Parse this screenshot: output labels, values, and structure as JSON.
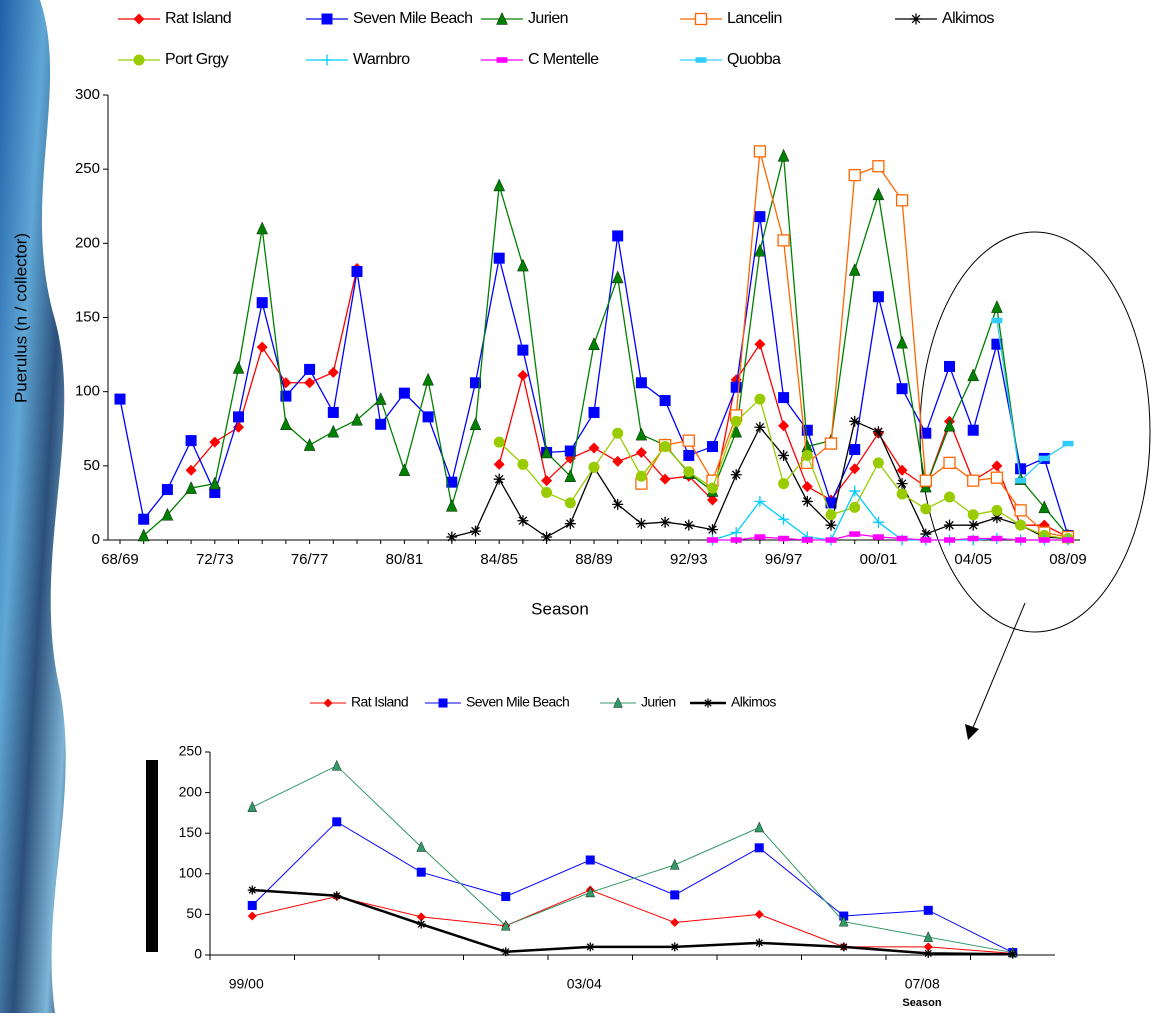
{
  "chart_data": [
    {
      "type": "line",
      "xlabel": "Season",
      "ylabel": "Puerulus (n / collector)",
      "categories": [
        "68/69",
        null,
        null,
        null,
        "72/73",
        null,
        null,
        null,
        "76/77",
        null,
        null,
        null,
        "80/81",
        null,
        null,
        null,
        "84/85",
        null,
        null,
        null,
        "88/89",
        null,
        null,
        null,
        "92/93",
        null,
        null,
        null,
        "96/97",
        null,
        null,
        null,
        "00/01",
        null,
        null,
        null,
        "04/05",
        null,
        null,
        null,
        "08/09"
      ],
      "ylim": [
        0,
        300
      ],
      "yticks": [
        0,
        50,
        100,
        150,
        200,
        250,
        300
      ],
      "series": [
        {
          "name": "Rat Island",
          "color": "#ff0000",
          "marker": "diamond",
          "values": [
            null,
            null,
            null,
            47,
            66,
            76,
            130,
            106,
            106,
            113,
            183,
            null,
            null,
            null,
            null,
            null,
            51,
            111,
            40,
            55,
            62,
            53,
            59,
            41,
            43,
            27,
            108,
            132,
            77,
            36,
            27,
            48,
            72,
            47,
            36,
            80,
            40,
            50,
            10,
            10,
            2
          ]
        },
        {
          "name": "Seven Mile Beach",
          "color": "#0000ff",
          "marker": "square",
          "values": [
            95,
            14,
            34,
            67,
            32,
            83,
            160,
            97,
            115,
            86,
            181,
            78,
            99,
            83,
            39,
            106,
            190,
            128,
            59,
            60,
            86,
            205,
            106,
            94,
            57,
            63,
            103,
            218,
            96,
            74,
            25,
            61,
            164,
            102,
            72,
            117,
            74,
            132,
            48,
            55,
            3
          ]
        },
        {
          "name": "Jurien",
          "color": "#008000",
          "marker": "triangle",
          "values": [
            null,
            3,
            17,
            35,
            38,
            116,
            210,
            78,
            64,
            73,
            81,
            95,
            47,
            108,
            23,
            78,
            239,
            185,
            59,
            43,
            132,
            177,
            71,
            64,
            45,
            33,
            73,
            195,
            259,
            63,
            67,
            182,
            233,
            133,
            36,
            77,
            111,
            157,
            41,
            22,
            3
          ]
        },
        {
          "name": "Lancelin",
          "color": "#ff6600",
          "marker": "open-square",
          "values": [
            null,
            null,
            null,
            null,
            null,
            null,
            null,
            null,
            null,
            null,
            null,
            null,
            null,
            null,
            null,
            null,
            null,
            null,
            null,
            null,
            null,
            null,
            38,
            64,
            67,
            40,
            84,
            262,
            202,
            52,
            65,
            246,
            252,
            229,
            40,
            52,
            40,
            42,
            20,
            5,
            2
          ]
        },
        {
          "name": "Alkimos",
          "color": "#000000",
          "marker": "star",
          "values": [
            null,
            null,
            null,
            null,
            null,
            null,
            null,
            null,
            null,
            null,
            null,
            null,
            null,
            null,
            2,
            6,
            41,
            13,
            2,
            11,
            49,
            24,
            11,
            12,
            10,
            7,
            44,
            76,
            57,
            26,
            10,
            80,
            73,
            38,
            4,
            10,
            10,
            15,
            10,
            2,
            1
          ]
        },
        {
          "name": "Port Grgy",
          "color": "#99cc00",
          "marker": "circle",
          "values": [
            null,
            null,
            null,
            null,
            null,
            null,
            null,
            null,
            null,
            null,
            null,
            null,
            null,
            null,
            null,
            null,
            66,
            51,
            32,
            25,
            49,
            72,
            43,
            63,
            46,
            35,
            80,
            95,
            38,
            57,
            17,
            22,
            52,
            31,
            21,
            29,
            17,
            20,
            10,
            3,
            1
          ]
        },
        {
          "name": "Warnbro",
          "color": "#00ccff",
          "marker": "plus",
          "values": [
            null,
            null,
            null,
            null,
            null,
            null,
            null,
            null,
            null,
            null,
            null,
            null,
            null,
            null,
            null,
            null,
            null,
            null,
            null,
            null,
            null,
            null,
            null,
            null,
            null,
            0,
            5,
            26,
            14,
            2,
            0,
            33,
            12,
            0,
            0,
            0,
            0,
            1,
            0,
            0,
            0
          ]
        },
        {
          "name": "C Mentelle",
          "color": "#ff00ff",
          "marker": "dash",
          "values": [
            null,
            null,
            null,
            null,
            null,
            null,
            null,
            null,
            null,
            null,
            null,
            null,
            null,
            null,
            null,
            null,
            null,
            null,
            null,
            null,
            null,
            null,
            null,
            null,
            null,
            0,
            0,
            2,
            1,
            0,
            0,
            4,
            2,
            1,
            0,
            0,
            1,
            1,
            0,
            0,
            0
          ]
        },
        {
          "name": "Quobba",
          "color": "#33ccff",
          "marker": "dash",
          "values": [
            null,
            null,
            null,
            null,
            null,
            null,
            null,
            null,
            null,
            null,
            null,
            null,
            null,
            null,
            null,
            null,
            null,
            null,
            null,
            null,
            null,
            null,
            null,
            null,
            null,
            null,
            null,
            null,
            null,
            null,
            null,
            null,
            null,
            null,
            null,
            null,
            null,
            148,
            40,
            55,
            65
          ]
        }
      ]
    },
    {
      "type": "line",
      "xlabel": "Season",
      "categories": [
        "99/00",
        null,
        null,
        null,
        "03/04",
        null,
        null,
        null,
        "07/08",
        null
      ],
      "ylim": [
        0,
        250
      ],
      "yticks": [
        0,
        50,
        100,
        150,
        200,
        250
      ],
      "series": [
        {
          "name": "Rat Island",
          "color": "#ff0000",
          "marker": "diamond",
          "values": [
            48,
            72,
            47,
            36,
            80,
            40,
            50,
            10,
            10,
            2
          ]
        },
        {
          "name": "Seven Mile Beach",
          "color": "#0000ff",
          "marker": "square",
          "values": [
            61,
            164,
            102,
            72,
            117,
            74,
            132,
            48,
            55,
            3
          ]
        },
        {
          "name": "Jurien",
          "color": "#339966",
          "marker": "triangle",
          "values": [
            182,
            233,
            133,
            36,
            77,
            111,
            157,
            41,
            22,
            3
          ]
        },
        {
          "name": "Alkimos",
          "color": "#000000",
          "marker": "star",
          "values": [
            80,
            73,
            38,
            4,
            10,
            10,
            15,
            10,
            2,
            1
          ]
        }
      ]
    }
  ]
}
